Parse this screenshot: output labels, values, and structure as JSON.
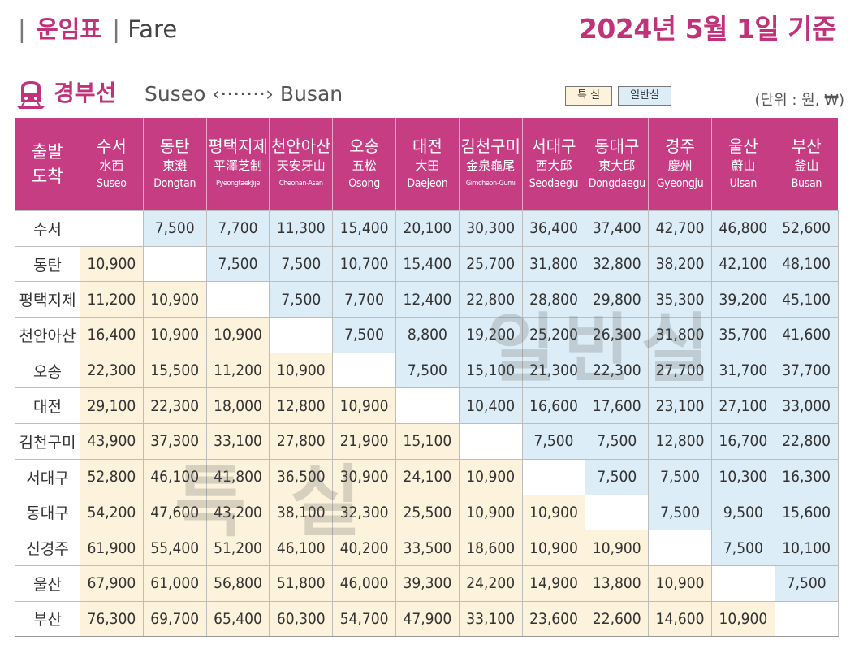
{
  "header": {
    "bar1": "|",
    "title_ko": "운임표",
    "bar2": "|",
    "title_en": "Fare",
    "date_label": "2024년 5월 1일 기준"
  },
  "route": {
    "icon": "train-icon",
    "name_ko": "경부선",
    "name_en": "Suseo ‹·······› Busan",
    "legend_first": "특 실",
    "legend_general": "일반실",
    "unit": "(단위 : 원, ₩)"
  },
  "colors": {
    "accent": "#c0337a",
    "header_bg": "#c73d84",
    "first_class_bg": "#fdf2dc",
    "general_class_bg": "#dcedf8"
  },
  "watermarks": {
    "general": "일반실",
    "first": "특 실"
  },
  "table": {
    "corner": [
      "출발",
      "도착"
    ],
    "columns": [
      {
        "ko": "수서",
        "hanja": "水西",
        "en": "Suseo"
      },
      {
        "ko": "동탄",
        "hanja": "東灘",
        "en": "Dongtan"
      },
      {
        "ko": "평택지제",
        "hanja": "平澤芝制",
        "en": "PyeongtaekJije"
      },
      {
        "ko": "천안아산",
        "hanja": "天安牙山",
        "en": "Cheonan-Asan"
      },
      {
        "ko": "오송",
        "hanja": "五松",
        "en": "Osong"
      },
      {
        "ko": "대전",
        "hanja": "大田",
        "en": "Daejeon"
      },
      {
        "ko": "김천구미",
        "hanja": "金泉龜尾",
        "en": "Gimcheon-Gumi"
      },
      {
        "ko": "서대구",
        "hanja": "西大邱",
        "en": "Seodaegu"
      },
      {
        "ko": "동대구",
        "hanja": "東大邱",
        "en": "Dongdaegu"
      },
      {
        "ko": "경주",
        "hanja": "慶州",
        "en": "Gyeongju"
      },
      {
        "ko": "울산",
        "hanja": "蔚山",
        "en": "Ulsan"
      },
      {
        "ko": "부산",
        "hanja": "釜山",
        "en": "Busan"
      }
    ],
    "rows": [
      {
        "label": "수서",
        "values": [
          "",
          "7,500",
          "7,700",
          "11,300",
          "15,400",
          "20,100",
          "30,300",
          "36,400",
          "37,400",
          "42,700",
          "46,800",
          "52,600"
        ]
      },
      {
        "label": "동탄",
        "values": [
          "10,900",
          "",
          "7,500",
          "7,500",
          "10,700",
          "15,400",
          "25,700",
          "31,800",
          "32,800",
          "38,200",
          "42,100",
          "48,100"
        ]
      },
      {
        "label": "평택지제",
        "values": [
          "11,200",
          "10,900",
          "",
          "7,500",
          "7,700",
          "12,400",
          "22,800",
          "28,800",
          "29,800",
          "35,300",
          "39,200",
          "45,100"
        ]
      },
      {
        "label": "천안아산",
        "values": [
          "16,400",
          "10,900",
          "10,900",
          "",
          "7,500",
          "8,800",
          "19,200",
          "25,200",
          "26,300",
          "31,800",
          "35,700",
          "41,600"
        ]
      },
      {
        "label": "오송",
        "values": [
          "22,300",
          "15,500",
          "11,200",
          "10,900",
          "",
          "7,500",
          "15,100",
          "21,300",
          "22,300",
          "27,700",
          "31,700",
          "37,700"
        ]
      },
      {
        "label": "대전",
        "values": [
          "29,100",
          "22,300",
          "18,000",
          "12,800",
          "10,900",
          "",
          "10,400",
          "16,600",
          "17,600",
          "23,100",
          "27,100",
          "33,000"
        ]
      },
      {
        "label": "김천구미",
        "values": [
          "43,900",
          "37,300",
          "33,100",
          "27,800",
          "21,900",
          "15,100",
          "",
          "7,500",
          "7,500",
          "12,800",
          "16,700",
          "22,800"
        ]
      },
      {
        "label": "서대구",
        "values": [
          "52,800",
          "46,100",
          "41,800",
          "36,500",
          "30,900",
          "24,100",
          "10,900",
          "",
          "7,500",
          "7,500",
          "10,300",
          "16,300"
        ]
      },
      {
        "label": "동대구",
        "values": [
          "54,200",
          "47,600",
          "43,200",
          "38,100",
          "32,300",
          "25,500",
          "10,900",
          "10,900",
          "",
          "7,500",
          "9,500",
          "15,600"
        ]
      },
      {
        "label": "신경주",
        "values": [
          "61,900",
          "55,400",
          "51,200",
          "46,100",
          "40,200",
          "33,500",
          "18,600",
          "10,900",
          "10,900",
          "",
          "7,500",
          "10,100"
        ]
      },
      {
        "label": "울산",
        "values": [
          "67,900",
          "61,000",
          "56,800",
          "51,800",
          "46,000",
          "39,300",
          "24,200",
          "14,900",
          "13,800",
          "10,900",
          "",
          "7,500"
        ]
      },
      {
        "label": "부산",
        "values": [
          "76,300",
          "69,700",
          "65,400",
          "60,300",
          "54,700",
          "47,900",
          "33,100",
          "23,600",
          "22,600",
          "14,600",
          "10,900",
          ""
        ]
      }
    ]
  }
}
